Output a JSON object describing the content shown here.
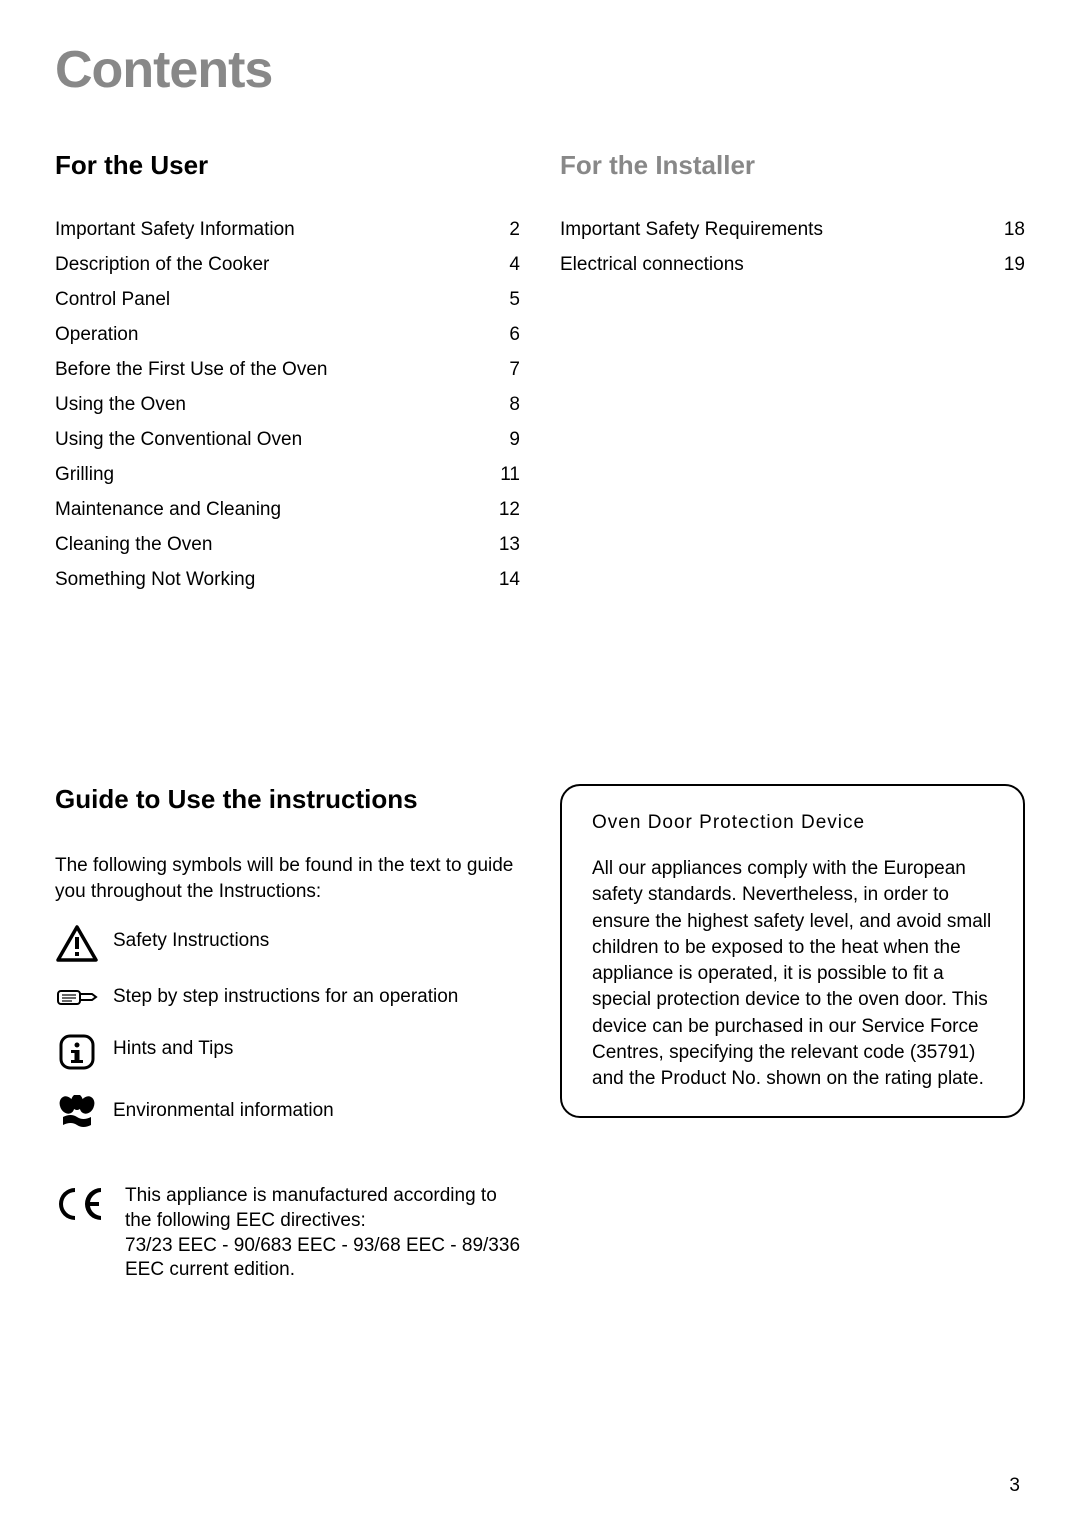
{
  "title": "Contents",
  "user_section": {
    "heading": "For the User",
    "items": [
      {
        "label": "Important Safety Information",
        "page": "2"
      },
      {
        "label": "Description of the Cooker",
        "page": "4"
      },
      {
        "label": "Control Panel",
        "page": "5"
      },
      {
        "label": "Operation",
        "page": "6"
      },
      {
        "label": "Before the First Use of the Oven",
        "page": "7"
      },
      {
        "label": "Using the Oven",
        "page": "8"
      },
      {
        "label": "Using the Conventional Oven",
        "page": "9"
      },
      {
        "label": "Grilling",
        "page": "11"
      },
      {
        "label": "Maintenance and Cleaning",
        "page": "12"
      },
      {
        "label": "Cleaning the Oven",
        "page": "13"
      },
      {
        "label": "Something Not Working",
        "page": "14"
      }
    ]
  },
  "installer_section": {
    "heading": "For the Installer",
    "items": [
      {
        "label": "Important Safety Requirements",
        "page": "18"
      },
      {
        "label": "Electrical connections",
        "page": "19"
      }
    ]
  },
  "guide": {
    "heading": "Guide to Use the instructions",
    "intro": "The following symbols will be found in the text to guide you throughout the Instructions:",
    "symbols": [
      {
        "icon": "warning",
        "text": "Safety Instructions"
      },
      {
        "icon": "hand",
        "text": "Step by step instructions for an operation"
      },
      {
        "icon": "info",
        "text": "Hints and Tips"
      },
      {
        "icon": "eco",
        "text": "Environmental information"
      }
    ],
    "ce_text": "This appliance is manufactured according to the following EEC directives:\n73/23 EEC - 90/683 EEC - 93/68 EEC - 89/336 EEC current edition."
  },
  "info_box": {
    "title": "Oven Door Protection Device",
    "body": "All our appliances comply with the European safety standards. Nevertheless, in order to ensure the highest safety level, and avoid small children to be exposed to the heat when the appliance is operated, it is possible to fit a special protection device to the oven door. This device can be purchased in our Service Force Centres, specifying the relevant code (35791) and the Product No. shown on the rating plate."
  },
  "page_number": "3",
  "colors": {
    "text": "#000000",
    "grey": "#888888",
    "background": "#ffffff"
  }
}
